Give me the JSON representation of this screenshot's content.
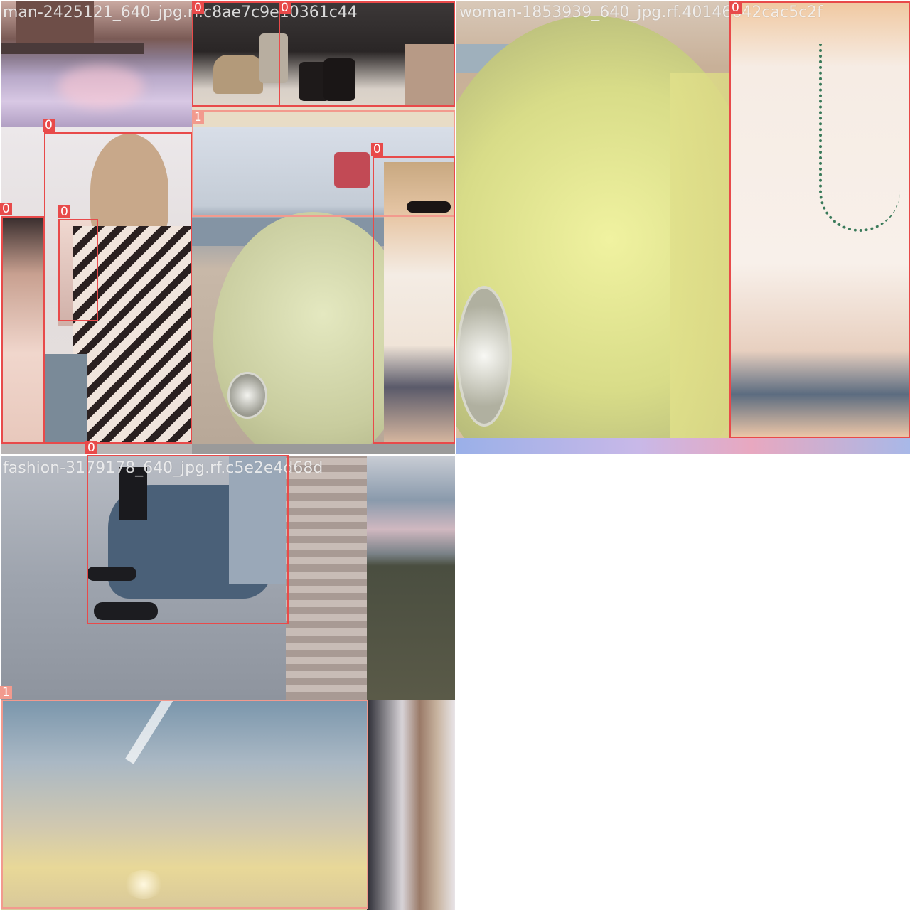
{
  "mosaic": {
    "captions": {
      "top_left": "man-2425121_640_jpg.rf.c8ae7c9e10361c44",
      "top_right": "woman-1853939_640_jpg.rf.40146642cac5c2f",
      "bottom_left": "fashion-3179178_640_jpg.rf.c5e2e4d68d"
    },
    "detections": [
      {
        "label": "0"
      },
      {
        "label": "0"
      },
      {
        "label": "1"
      },
      {
        "label": "0"
      },
      {
        "label": "0"
      },
      {
        "label": "0"
      },
      {
        "label": "0"
      },
      {
        "label": "0"
      },
      {
        "label": "0"
      },
      {
        "label": "1"
      }
    ]
  }
}
